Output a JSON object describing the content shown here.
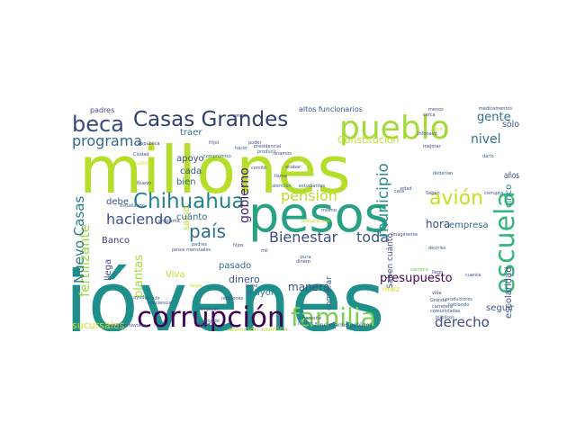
{
  "palette": {
    "purple_dark": "#440154",
    "purple": "#482878",
    "indigo": "#3e4a89",
    "blue": "#31688e",
    "teal_blue": "#26828e",
    "teal": "#1f9e89",
    "green": "#35b779",
    "green_light": "#6ece58",
    "lime": "#b5de2b",
    "yellow": "#fde725"
  },
  "words": [
    {
      "text": "jóvenes",
      "color": "#1f8f8b"
    },
    {
      "text": "millones",
      "color": "#b5de2b"
    },
    {
      "text": "pesos",
      "color": "#26a184"
    },
    {
      "text": "pueblo",
      "color": "#a2da37"
    },
    {
      "text": "corrupción",
      "color": "#440154"
    },
    {
      "text": "familia",
      "color": "#7ad151"
    },
    {
      "text": "escuela",
      "color": "#35b779"
    },
    {
      "text": "Casas Grandes",
      "color": "#31406e"
    },
    {
      "text": "Chihuahua",
      "color": "#26828e"
    },
    {
      "text": "beca",
      "color": "#3b4a7d"
    },
    {
      "text": "avión",
      "color": "#c8e020"
    },
    {
      "text": "país",
      "color": "#2d6e8e"
    },
    {
      "text": "Bienestar",
      "color": "#3e4a89"
    },
    {
      "text": "toda",
      "color": "#38588c"
    },
    {
      "text": "municipio",
      "color": "#2c8c8a"
    },
    {
      "text": "pensión",
      "color": "#b8de29"
    },
    {
      "text": "haciendo",
      "color": "#3b528b"
    },
    {
      "text": "programa",
      "color": "#31688e"
    },
    {
      "text": "fertilizante",
      "color": "#9bd93c"
    },
    {
      "text": "Nuevo Casas",
      "color": "#2a7b8e"
    },
    {
      "text": "gobierno",
      "color": "#482173"
    },
    {
      "text": "derecho",
      "color": "#3e4989"
    },
    {
      "text": "presupuesto",
      "color": "#440154"
    },
    {
      "text": "gente",
      "color": "#2e6f8e"
    },
    {
      "text": "nivel",
      "color": "#2d708e"
    },
    {
      "text": "escolaridad",
      "color": "#3d4e8a"
    },
    {
      "text": "plantas",
      "color": "#a8db34"
    },
    {
      "text": "manera",
      "color": "#3a538b"
    },
    {
      "text": "hora",
      "color": "#3e4a89"
    },
    {
      "text": "empresa",
      "color": "#2e6e8e"
    },
    {
      "text": "Constitución",
      "color": "#c2df23"
    },
    {
      "text": "sucursales",
      "color": "#d2e21b"
    },
    {
      "text": "salud",
      "color": "#b5de2b"
    },
    {
      "text": "dinero",
      "color": "#3b518b"
    },
    {
      "text": "Banco",
      "color": "#453882"
    },
    {
      "text": "debe",
      "color": "#3b528b"
    },
    {
      "text": "llega",
      "color": "#3f4889"
    },
    {
      "text": "Viva",
      "color": "#c5e021"
    },
    {
      "text": "mayor",
      "color": "#2a788e"
    },
    {
      "text": "pasado",
      "color": "#2e6d8e"
    },
    {
      "text": "seguir",
      "color": "#3b528b"
    },
    {
      "text": "cuánto",
      "color": "#31688e"
    },
    {
      "text": "años",
      "color": "#3e4a89"
    },
    {
      "text": "cinco",
      "color": "#277f8e"
    },
    {
      "text": "sólo",
      "color": "#3b528b"
    },
    {
      "text": "cada",
      "color": "#3b528b"
    },
    {
      "text": "bien",
      "color": "#31688e"
    },
    {
      "text": "apoyo",
      "color": "#3b528b"
    },
    {
      "text": "traer",
      "color": "#2d708e"
    },
    {
      "text": "padres",
      "color": "#3e4a89"
    },
    {
      "text": "altos funcionarios",
      "color": "#3b528b"
    },
    {
      "text": "Saben cuánto",
      "color": "#3e4a89"
    },
    {
      "text": "comprar",
      "color": "#31688e"
    },
    {
      "text": "dar",
      "color": "#3b528b"
    },
    {
      "text": "atención médica",
      "color": "#b5de2b"
    },
    {
      "text": "maíz",
      "color": "#d8e219"
    },
    {
      "text": "funcionarios públicos",
      "color": "#3b528b"
    },
    {
      "text": "adultos mayores",
      "color": "#3e4a89"
    },
    {
      "text": "Grande",
      "color": "#3b528b"
    },
    {
      "text": "carretera",
      "color": "#3e4a89"
    },
    {
      "text": "hablando",
      "color": "#31688e"
    },
    {
      "text": "comunidades",
      "color": "#3b528b"
    },
    {
      "text": "públicas",
      "color": "#31688e"
    },
    {
      "text": "cuenta",
      "color": "#3b528b"
    },
    {
      "text": "productores",
      "color": "#31688e"
    },
    {
      "text": "corrupta",
      "color": "#3e4a89"
    },
    {
      "text": "presidencial",
      "color": "#3e4a89"
    },
    {
      "text": "producir",
      "color": "#31688e"
    },
    {
      "text": "medicamentos",
      "color": "#3b528b"
    },
    {
      "text": "menos",
      "color": "#3b528b"
    },
    {
      "text": "necesite",
      "color": "#3e4a89"
    },
    {
      "text": "decidir",
      "color": "#31688e"
    },
    {
      "text": "religiones",
      "color": "#3e4a89"
    },
    {
      "text": "empujar",
      "color": "#3b528b"
    },
    {
      "text": "llegar",
      "color": "#c2df23"
    },
    {
      "text": "mismo",
      "color": "#3e4a89"
    },
    {
      "text": "hacer",
      "color": "#31688e"
    },
    {
      "text": "estudiantes",
      "color": "#3b528b"
    },
    {
      "text": "mejorar",
      "color": "#3e4a89"
    },
    {
      "text": "Imaginense",
      "color": "#3b528b"
    },
    {
      "text": "deberían",
      "color": "#31688e"
    },
    {
      "text": "República",
      "color": "#3e4a89"
    },
    {
      "text": "frijol",
      "color": "#3b528b"
    },
    {
      "text": "compromiso",
      "color": "#31688e"
    },
    {
      "text": "Infonavit",
      "color": "#3e4a89"
    },
    {
      "text": "comité",
      "color": "#3b528b"
    },
    {
      "text": "llama",
      "color": "#3e4a89"
    },
    {
      "text": "atención",
      "color": "#31688e"
    },
    {
      "text": "conciencia",
      "color": "#3b528b"
    },
    {
      "text": "problema",
      "color": "#3e4a89"
    },
    {
      "text": "ayudar",
      "color": "#31688e"
    },
    {
      "text": "Ciudad",
      "color": "#3b528b"
    },
    {
      "text": "justicia",
      "color": "#d2e21b"
    },
    {
      "text": "estudiando",
      "color": "#31688e"
    },
    {
      "text": "alcalde",
      "color": "#3e4a89"
    },
    {
      "text": "preparatoria",
      "color": "#d2e21b"
    },
    {
      "text": "importante",
      "color": "#6ece58"
    },
    {
      "text": "pesos mensuales",
      "color": "#3b528b"
    },
    {
      "text": "Nuevo",
      "color": "#3e4a89"
    },
    {
      "text": "poder",
      "color": "#3b528b"
    },
    {
      "text": "padres",
      "color": "#31688e"
    },
    {
      "text": "mil",
      "color": "#3b528b"
    },
    {
      "text": "hijos",
      "color": "#3e4a89"
    },
    {
      "text": "leche",
      "color": "#3b528b"
    },
    {
      "text": "pura",
      "color": "#31688e"
    },
    {
      "text": "dinero",
      "color": "#3e4a89"
    },
    {
      "text": "Saben",
      "color": "#3b528b"
    },
    {
      "text": "darlo",
      "color": "#31688e"
    },
    {
      "text": "cerca",
      "color": "#3e4a89"
    },
    {
      "text": "edad",
      "color": "#3b528b"
    },
    {
      "text": "vengo",
      "color": "#3e4a89"
    },
    {
      "text": "acabar",
      "color": "#3b528b"
    },
    {
      "text": "fácil",
      "color": "#c2df23"
    },
    {
      "text": "unamos",
      "color": "#3e4a89"
    },
    {
      "text": "hacían",
      "color": "#31688e"
    },
    {
      "text": "camino",
      "color": "#d2e21b"
    },
    {
      "text": "cara",
      "color": "#3b528b"
    },
    {
      "text": "llegó",
      "color": "#3e4a89"
    },
    {
      "text": "siempre",
      "color": "#6ece58"
    },
    {
      "text": "vida",
      "color": "#3b528b"
    },
    {
      "text": "decirles",
      "color": "#31688e"
    },
    {
      "text": "política",
      "color": "#3e4a89"
    },
    {
      "text": "cierto",
      "color": "#d2e21b"
    }
  ]
}
